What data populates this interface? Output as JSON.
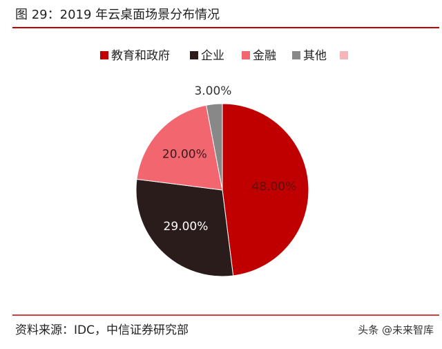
{
  "chart_data": {
    "type": "pie",
    "title": "图 29：2019 年云桌面场景分布情况",
    "categories": [
      "教育和政府",
      "企业",
      "金融",
      "其他"
    ],
    "values": [
      48,
      29,
      20,
      3
    ],
    "value_labels": [
      "48.00%",
      "29.00%",
      "20.00%",
      "3.00%"
    ],
    "colors": [
      "#c00000",
      "#2b1c1c",
      "#f26670",
      "#888888"
    ],
    "start_angle": "top",
    "direction": "clockwise"
  },
  "source": "资料来源：IDC，中信证券研究部",
  "watermark": "头条 @未来智库"
}
